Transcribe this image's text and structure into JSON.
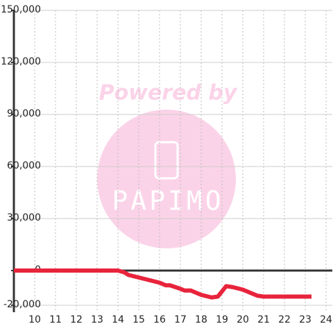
{
  "chart_data": {
    "type": "line",
    "x": [
      9,
      14,
      14.3,
      14.5,
      15,
      15.5,
      16,
      16.3,
      16.5,
      17,
      17.2,
      17.5,
      18,
      18.5,
      18.8,
      19.2,
      19.5,
      20,
      20.3,
      20.7,
      21,
      22,
      23.3
    ],
    "series": [
      {
        "color": "#e8243c",
        "values": [
          0,
          0,
          -1000,
          -2500,
          -4000,
          -5500,
          -7000,
          -8500,
          -8500,
          -10500,
          -11500,
          -11500,
          -14000,
          -15500,
          -15000,
          -9000,
          -9500,
          -11000,
          -12500,
          -14500,
          -15000,
          -15000,
          -15000
        ]
      }
    ],
    "xlim": [
      9,
      24.3
    ],
    "xticks": [
      10,
      11,
      12,
      13,
      14,
      15,
      16,
      17,
      18,
      19,
      20,
      21,
      22,
      23,
      24
    ],
    "ylim": [
      -24000,
      150000
    ],
    "yticks": [
      {
        "value": -20000,
        "label": "-20,000"
      },
      0,
      {
        "value": 30000,
        "label": "30,000"
      },
      {
        "value": 60000,
        "label": "60,000"
      },
      {
        "value": 90000,
        "label": "90,000"
      },
      {
        "value": 120000,
        "label": "120,000"
      },
      {
        "value": 150000,
        "label": "150,000"
      }
    ],
    "grid": true
  },
  "watermark": {
    "line1": "Powered by",
    "line2": "PAPIMO"
  }
}
